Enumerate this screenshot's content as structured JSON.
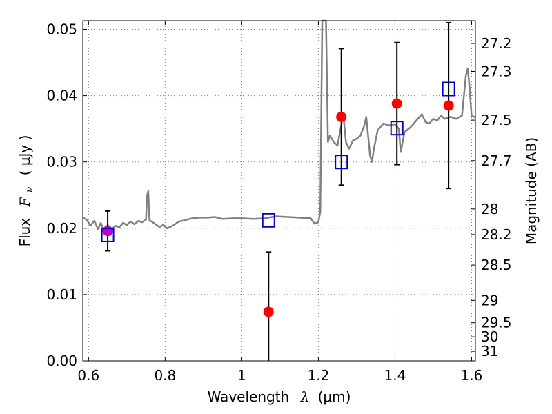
{
  "chart_data": {
    "type": "scatter",
    "xlabel": "Wavelength",
    "xlabel_symbol": "λ",
    "xlabel_unit": "(μm)",
    "ylabel": "Flux",
    "ylabel_symbol": "F",
    "ylabel_symbol_sub": "ν",
    "ylabel_unit": "( μJy )",
    "ylabel_right": "Magnitude (AB)",
    "xlim": [
      0.585,
      1.61
    ],
    "ylim": [
      0.0,
      0.0513
    ],
    "grid": true,
    "x_ticks": [
      {
        "value": 0.6,
        "label": "0.6"
      },
      {
        "value": 0.8,
        "label": "0.8"
      },
      {
        "value": 1.0,
        "label": "1"
      },
      {
        "value": 1.2,
        "label": "1.2"
      },
      {
        "value": 1.4,
        "label": "1.4"
      },
      {
        "value": 1.6,
        "label": "1.6"
      }
    ],
    "y_ticks": [
      {
        "value": 0.0,
        "label": "0.00"
      },
      {
        "value": 0.01,
        "label": "0.01"
      },
      {
        "value": 0.02,
        "label": "0.02"
      },
      {
        "value": 0.03,
        "label": "0.03"
      },
      {
        "value": 0.04,
        "label": "0.04"
      },
      {
        "value": 0.05,
        "label": "0.05"
      }
    ],
    "mag_ticks": [
      {
        "mag": 27.2,
        "label": "27.2"
      },
      {
        "mag": 27.3,
        "label": "27.3"
      },
      {
        "mag": 27.5,
        "label": "27.5"
      },
      {
        "mag": 27.7,
        "label": "27.7"
      },
      {
        "mag": 28.0,
        "label": "28"
      },
      {
        "mag": 28.2,
        "label": "28.2"
      },
      {
        "mag": 28.5,
        "label": "28.5"
      },
      {
        "mag": 29.0,
        "label": "29"
      },
      {
        "mag": 29.5,
        "label": "29.5"
      },
      {
        "mag": 30.0,
        "label": "30"
      },
      {
        "mag": 31.0,
        "label": "31"
      }
    ],
    "series": [
      {
        "name": "model_spectrum",
        "kind": "line",
        "color": "#808080",
        "points": [
          [
            0.585,
            0.0216
          ],
          [
            0.595,
            0.0213
          ],
          [
            0.605,
            0.0204
          ],
          [
            0.615,
            0.0211
          ],
          [
            0.625,
            0.0199
          ],
          [
            0.632,
            0.0208
          ],
          [
            0.64,
            0.0197
          ],
          [
            0.65,
            0.0205
          ],
          [
            0.66,
            0.0198
          ],
          [
            0.67,
            0.0204
          ],
          [
            0.68,
            0.0201
          ],
          [
            0.69,
            0.0208
          ],
          [
            0.7,
            0.0205
          ],
          [
            0.71,
            0.021
          ],
          [
            0.72,
            0.0206
          ],
          [
            0.73,
            0.0211
          ],
          [
            0.74,
            0.0209
          ],
          [
            0.75,
            0.0213
          ],
          [
            0.753,
            0.025
          ],
          [
            0.756,
            0.0256
          ],
          [
            0.759,
            0.0212
          ],
          [
            0.765,
            0.021
          ],
          [
            0.775,
            0.0206
          ],
          [
            0.785,
            0.0202
          ],
          [
            0.795,
            0.0205
          ],
          [
            0.805,
            0.02
          ],
          [
            0.82,
            0.0204
          ],
          [
            0.835,
            0.021
          ],
          [
            0.85,
            0.0212
          ],
          [
            0.87,
            0.0215
          ],
          [
            0.89,
            0.0216
          ],
          [
            0.91,
            0.0216
          ],
          [
            0.93,
            0.0217
          ],
          [
            0.95,
            0.0214
          ],
          [
            0.98,
            0.0215
          ],
          [
            1.0,
            0.0215
          ],
          [
            1.03,
            0.0214
          ],
          [
            1.06,
            0.0215
          ],
          [
            1.09,
            0.0218
          ],
          [
            1.12,
            0.0217
          ],
          [
            1.15,
            0.0216
          ],
          [
            1.18,
            0.0215
          ],
          [
            1.19,
            0.0207
          ],
          [
            1.2,
            0.0209
          ],
          [
            1.205,
            0.0225
          ],
          [
            1.21,
            0.0513
          ],
          [
            1.22,
            0.0513
          ],
          [
            1.225,
            0.033
          ],
          [
            1.23,
            0.034
          ],
          [
            1.24,
            0.033
          ],
          [
            1.25,
            0.0325
          ],
          [
            1.258,
            0.035
          ],
          [
            1.265,
            0.0372
          ],
          [
            1.272,
            0.033
          ],
          [
            1.28,
            0.032
          ],
          [
            1.29,
            0.0332
          ],
          [
            1.3,
            0.0335
          ],
          [
            1.31,
            0.034
          ],
          [
            1.32,
            0.0355
          ],
          [
            1.325,
            0.0368
          ],
          [
            1.335,
            0.031
          ],
          [
            1.34,
            0.03
          ],
          [
            1.345,
            0.032
          ],
          [
            1.355,
            0.0348
          ],
          [
            1.37,
            0.0358
          ],
          [
            1.385,
            0.0355
          ],
          [
            1.4,
            0.0357
          ],
          [
            1.41,
            0.035
          ],
          [
            1.415,
            0.0315
          ],
          [
            1.425,
            0.0345
          ],
          [
            1.44,
            0.0352
          ],
          [
            1.455,
            0.0362
          ],
          [
            1.47,
            0.0372
          ],
          [
            1.48,
            0.036
          ],
          [
            1.49,
            0.0358
          ],
          [
            1.5,
            0.0365
          ],
          [
            1.51,
            0.0362
          ],
          [
            1.52,
            0.037
          ],
          [
            1.53,
            0.0365
          ],
          [
            1.545,
            0.0368
          ],
          [
            1.56,
            0.0365
          ],
          [
            1.575,
            0.037
          ],
          [
            1.585,
            0.043
          ],
          [
            1.59,
            0.0441
          ],
          [
            1.595,
            0.041
          ],
          [
            1.6,
            0.037
          ],
          [
            1.61,
            0.0367
          ]
        ]
      },
      {
        "name": "observed_flux",
        "kind": "scatter_errorbar",
        "color": "#ff0000",
        "points": [
          {
            "x": 0.65,
            "y": 0.0196,
            "yerr": 0.003
          },
          {
            "x": 1.07,
            "y": 0.0074,
            "yerr": 0.009
          },
          {
            "x": 1.26,
            "y": 0.0368,
            "yerr": 0.0103
          },
          {
            "x": 1.405,
            "y": 0.0388,
            "yerr": 0.0092
          },
          {
            "x": 1.54,
            "y": 0.0385,
            "yerr": 0.0125
          }
        ]
      },
      {
        "name": "optical_point",
        "kind": "scatter",
        "color": "#bf00bf",
        "points": [
          {
            "x": 0.65,
            "y": 0.0196
          }
        ]
      },
      {
        "name": "model_band_flux",
        "kind": "scatter_open_square",
        "color": "#0000cc",
        "points": [
          {
            "x": 0.65,
            "y": 0.019
          },
          {
            "x": 1.07,
            "y": 0.0212
          },
          {
            "x": 1.26,
            "y": 0.03
          },
          {
            "x": 1.405,
            "y": 0.0351
          },
          {
            "x": 1.54,
            "y": 0.041
          }
        ]
      }
    ]
  }
}
